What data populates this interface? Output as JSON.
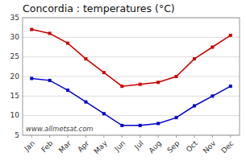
{
  "chart_data": {
    "type": "line",
    "title": "Concordia : temperatures (°C)",
    "categories": [
      "Jan",
      "Feb",
      "Mar",
      "Apr",
      "May",
      "Jun",
      "Jul",
      "Aug",
      "Sep",
      "Oct",
      "Nov",
      "Dec"
    ],
    "series": [
      {
        "color": "#cc0000",
        "marker": "square",
        "values": [
          32.0,
          31.0,
          28.5,
          24.5,
          21.0,
          17.5,
          18.0,
          18.5,
          20.0,
          24.5,
          27.5,
          30.5
        ]
      },
      {
        "color": "#0000cc",
        "marker": "square",
        "values": [
          19.5,
          19.0,
          16.5,
          13.5,
          10.5,
          7.5,
          7.5,
          8.0,
          9.5,
          12.5,
          15.0,
          17.5
        ]
      }
    ],
    "ylim": [
      5,
      35
    ],
    "yticks": [
      5,
      10,
      15,
      20,
      25,
      30,
      35
    ],
    "grid": true,
    "annotations": [
      "www.allmetsat.com"
    ]
  }
}
